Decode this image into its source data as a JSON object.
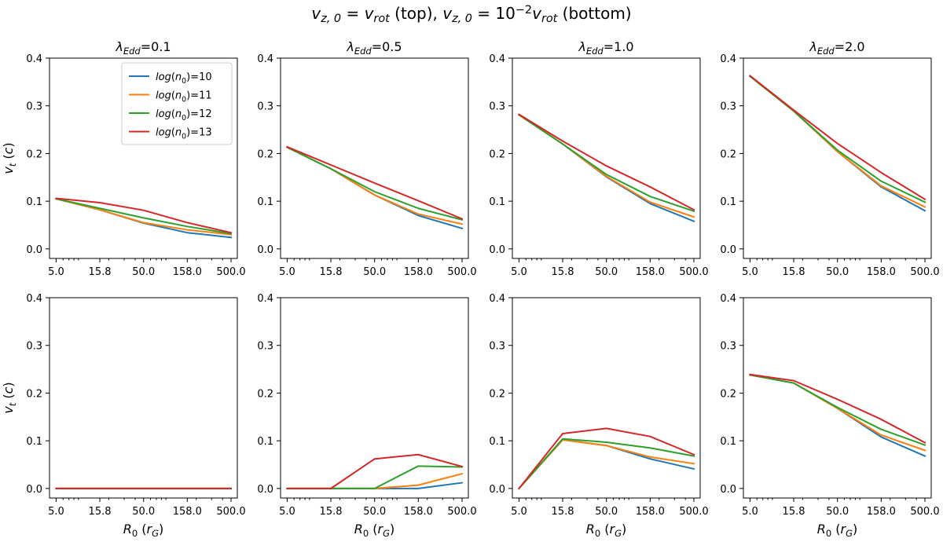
{
  "suptitle": {
    "parts": [
      {
        "t": "v",
        "italic": true
      },
      {
        "t": "z, 0",
        "sub": true,
        "italic": true
      },
      {
        "t": " = "
      },
      {
        "t": "v",
        "italic": true
      },
      {
        "t": "rot",
        "sub": true,
        "italic": true
      },
      {
        "t": " (top), "
      },
      {
        "t": "v",
        "italic": true
      },
      {
        "t": "z, 0",
        "sub": true,
        "italic": true
      },
      {
        "t": " = 10"
      },
      {
        "t": "−2",
        "sup": true
      },
      {
        "t": "v",
        "italic": true
      },
      {
        "t": "rot",
        "sub": true,
        "italic": true
      },
      {
        "t": " (bottom)"
      }
    ]
  },
  "column_titles": [
    [
      {
        "t": "λ",
        "italic": true
      },
      {
        "t": "Edd",
        "sub": true,
        "italic": true
      },
      {
        "t": "=0.1"
      }
    ],
    [
      {
        "t": "λ",
        "italic": true
      },
      {
        "t": "Edd",
        "sub": true,
        "italic": true
      },
      {
        "t": "=0.5"
      }
    ],
    [
      {
        "t": "λ",
        "italic": true
      },
      {
        "t": "Edd",
        "sub": true,
        "italic": true
      },
      {
        "t": "=1.0"
      }
    ],
    [
      {
        "t": "λ",
        "italic": true
      },
      {
        "t": "Edd",
        "sub": true,
        "italic": true
      },
      {
        "t": "=2.0"
      }
    ]
  ],
  "ylabel": [
    {
      "t": "v",
      "italic": true
    },
    {
      "t": "t",
      "sub": true,
      "italic": true
    },
    {
      "t": " ("
    },
    {
      "t": "c",
      "italic": true
    },
    {
      "t": ")"
    }
  ],
  "xlabel": [
    {
      "t": "R",
      "italic": true
    },
    {
      "t": "0",
      "sub": true
    },
    {
      "t": " ("
    },
    {
      "t": "r",
      "italic": true
    },
    {
      "t": "G",
      "sub": true,
      "italic": true
    },
    {
      "t": ")"
    }
  ],
  "legend": {
    "location": "upper-right of first panel",
    "entries": [
      [
        {
          "t": "log",
          "italic": true
        },
        {
          "t": "("
        },
        {
          "t": "n",
          "italic": true
        },
        {
          "t": "0",
          "sub": true
        },
        {
          "t": ")=10"
        }
      ],
      [
        {
          "t": "log",
          "italic": true
        },
        {
          "t": "("
        },
        {
          "t": "n",
          "italic": true
        },
        {
          "t": "0",
          "sub": true
        },
        {
          "t": ")=11"
        }
      ],
      [
        {
          "t": "log",
          "italic": true
        },
        {
          "t": "("
        },
        {
          "t": "n",
          "italic": true
        },
        {
          "t": "0",
          "sub": true
        },
        {
          "t": ")=12"
        }
      ],
      [
        {
          "t": "log",
          "italic": true
        },
        {
          "t": "("
        },
        {
          "t": "n",
          "italic": true
        },
        {
          "t": "0",
          "sub": true
        },
        {
          "t": ")=13"
        }
      ]
    ]
  },
  "chart_data": {
    "type": "line",
    "layout": "2 rows x 4 columns",
    "xscale": "log",
    "x": [
      5.0,
      15.8,
      50.0,
      158.0,
      500.0
    ],
    "xtick_labels": [
      "5.0",
      "15.8",
      "50.0",
      "158.0",
      "500.0"
    ],
    "xlim": [
      4.2,
      590
    ],
    "ylim": [
      -0.02,
      0.4
    ],
    "yticks": [
      0.0,
      0.1,
      0.2,
      0.3,
      0.4
    ],
    "ytick_labels": [
      "0.0",
      "0.1",
      "0.2",
      "0.3",
      "0.4"
    ],
    "series_names": [
      "log(n0)=10",
      "log(n0)=11",
      "log(n0)=12",
      "log(n0)=13"
    ],
    "colors": [
      "#1f77b4",
      "#ff7f0e",
      "#2ca02c",
      "#d62728"
    ],
    "rows": [
      {
        "label": "v_z,0 = v_rot (top)",
        "panels": [
          {
            "lambda_edd": 0.1,
            "series": [
              [
                0.105,
                0.082,
                0.054,
                0.034,
                0.024
              ],
              [
                0.105,
                0.082,
                0.055,
                0.04,
                0.03
              ],
              [
                0.105,
                0.085,
                0.065,
                0.047,
                0.032
              ],
              [
                0.106,
                0.097,
                0.081,
                0.055,
                0.034
              ]
            ]
          },
          {
            "lambda_edd": 0.5,
            "series": [
              [
                0.213,
                0.168,
                0.113,
                0.07,
                0.043
              ],
              [
                0.213,
                0.168,
                0.113,
                0.073,
                0.052
              ],
              [
                0.213,
                0.168,
                0.12,
                0.085,
                0.061
              ],
              [
                0.214,
                0.176,
                0.138,
                0.101,
                0.063
              ]
            ]
          },
          {
            "lambda_edd": 1.0,
            "series": [
              [
                0.281,
                0.22,
                0.151,
                0.095,
                0.058
              ],
              [
                0.281,
                0.22,
                0.152,
                0.098,
                0.067
              ],
              [
                0.281,
                0.22,
                0.156,
                0.11,
                0.079
              ],
              [
                0.282,
                0.226,
                0.174,
                0.13,
                0.082
              ]
            ]
          },
          {
            "lambda_edd": 2.0,
            "series": [
              [
                0.362,
                0.289,
                0.204,
                0.13,
                0.08
              ],
              [
                0.362,
                0.289,
                0.204,
                0.132,
                0.088
              ],
              [
                0.362,
                0.289,
                0.207,
                0.142,
                0.098
              ],
              [
                0.363,
                0.291,
                0.221,
                0.16,
                0.104
              ]
            ]
          }
        ]
      },
      {
        "label": "v_z,0 = 1e-2 v_rot (bottom)",
        "panels": [
          {
            "lambda_edd": 0.1,
            "series": [
              [
                0.0,
                0.0,
                0.0,
                0.0,
                0.0
              ],
              [
                0.0,
                0.0,
                0.0,
                0.0,
                0.0
              ],
              [
                0.0,
                0.0,
                0.0,
                0.0,
                0.0
              ],
              [
                0.0,
                0.0,
                0.0,
                0.0,
                0.0
              ]
            ]
          },
          {
            "lambda_edd": 0.5,
            "series": [
              [
                0.0,
                0.0,
                0.0,
                0.0,
                0.012
              ],
              [
                0.0,
                0.0,
                0.0,
                0.007,
                0.031
              ],
              [
                0.0,
                0.0,
                0.0,
                0.047,
                0.045
              ],
              [
                0.0,
                0.0,
                0.062,
                0.071,
                0.046
              ]
            ]
          },
          {
            "lambda_edd": 1.0,
            "series": [
              [
                0.0,
                0.102,
                0.09,
                0.062,
                0.041
              ],
              [
                0.0,
                0.102,
                0.09,
                0.066,
                0.052
              ],
              [
                0.0,
                0.104,
                0.097,
                0.085,
                0.068
              ],
              [
                0.0,
                0.115,
                0.126,
                0.109,
                0.071
              ]
            ]
          },
          {
            "lambda_edd": 2.0,
            "series": [
              [
                0.238,
                0.221,
                0.168,
                0.108,
                0.068
              ],
              [
                0.238,
                0.221,
                0.168,
                0.112,
                0.08
              ],
              [
                0.238,
                0.221,
                0.17,
                0.124,
                0.091
              ],
              [
                0.239,
                0.226,
                0.187,
                0.145,
                0.096
              ]
            ]
          }
        ]
      }
    ]
  }
}
